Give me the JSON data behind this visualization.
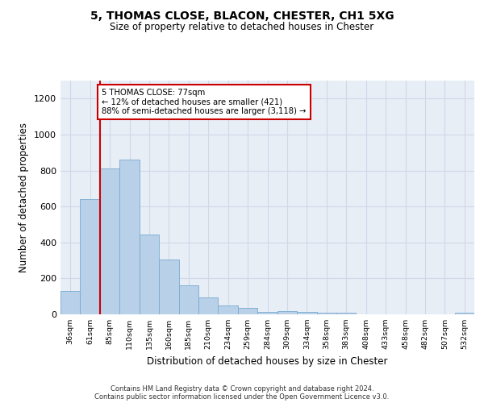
{
  "title1": "5, THOMAS CLOSE, BLACON, CHESTER, CH1 5XG",
  "title2": "Size of property relative to detached houses in Chester",
  "xlabel": "Distribution of detached houses by size in Chester",
  "ylabel": "Number of detached properties",
  "categories": [
    "36sqm",
    "61sqm",
    "85sqm",
    "110sqm",
    "135sqm",
    "160sqm",
    "185sqm",
    "210sqm",
    "234sqm",
    "259sqm",
    "284sqm",
    "309sqm",
    "334sqm",
    "358sqm",
    "383sqm",
    "408sqm",
    "433sqm",
    "458sqm",
    "482sqm",
    "507sqm",
    "532sqm"
  ],
  "values": [
    130,
    640,
    810,
    860,
    445,
    305,
    160,
    95,
    50,
    35,
    15,
    20,
    15,
    10,
    10,
    0,
    0,
    0,
    0,
    0,
    10
  ],
  "bar_color": "#b8d0e8",
  "bar_edge_color": "#7aaad0",
  "annotation_box_text": "5 THOMAS CLOSE: 77sqm\n← 12% of detached houses are smaller (421)\n88% of semi-detached houses are larger (3,118) →",
  "vline_x": 1.5,
  "vline_color": "#cc0000",
  "annotation_box_color": "#ffffff",
  "annotation_box_edgecolor": "#cc0000",
  "ylim": [
    0,
    1300
  ],
  "yticks": [
    0,
    200,
    400,
    600,
    800,
    1000,
    1200
  ],
  "footer_line1": "Contains HM Land Registry data © Crown copyright and database right 2024.",
  "footer_line2": "Contains public sector information licensed under the Open Government Licence v3.0.",
  "grid_color": "#d0d8e8",
  "bg_color": "#e8eef6"
}
